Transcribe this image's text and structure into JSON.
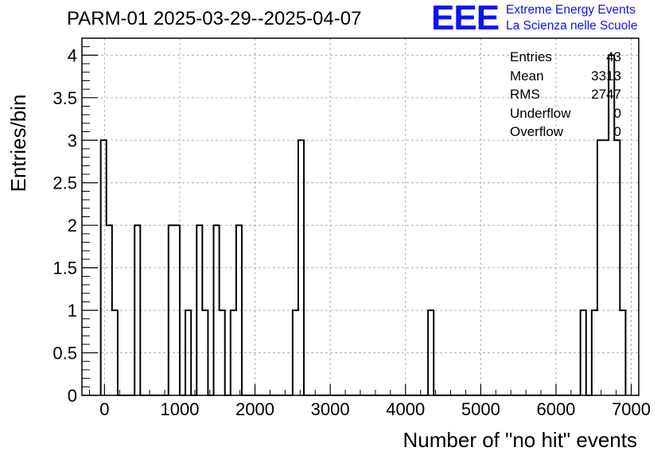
{
  "title": "PARM-01 2025-03-29--2025-04-07",
  "logo": {
    "mark": "EEE",
    "line1": "Extreme Energy Events",
    "line2": "La Scienza nelle Scuole"
  },
  "stats": [
    {
      "label": "Entries",
      "value": "43"
    },
    {
      "label": "Mean",
      "value": "3313"
    },
    {
      "label": "RMS",
      "value": "2747"
    },
    {
      "label": "Underflow",
      "value": "0"
    },
    {
      "label": "Overflow",
      "value": "0"
    }
  ],
  "chart_data": {
    "type": "histogram",
    "xlabel": "Number of \"no hit\" events",
    "ylabel": "Entries/bin",
    "xlim": [
      -300,
      7100
    ],
    "ylim": [
      0,
      4.2
    ],
    "xticks": [
      "0",
      "1000",
      "2000",
      "3000",
      "4000",
      "5000",
      "6000",
      "7000"
    ],
    "xtick_values": [
      0,
      1000,
      2000,
      3000,
      4000,
      5000,
      6000,
      7000
    ],
    "yticks": [
      "0",
      "0.5",
      "1",
      "1.5",
      "2",
      "2.5",
      "3",
      "3.5",
      "4"
    ],
    "ytick_values": [
      0,
      0.5,
      1,
      1.5,
      2,
      2.5,
      3,
      3.5,
      4
    ],
    "bin_width": 75,
    "bins": [
      {
        "x": -50,
        "count": 3
      },
      {
        "x": 25,
        "count": 2
      },
      {
        "x": 100,
        "count": 1
      },
      {
        "x": 400,
        "count": 2
      },
      {
        "x": 850,
        "count": 2
      },
      {
        "x": 925,
        "count": 2
      },
      {
        "x": 1075,
        "count": 1
      },
      {
        "x": 1225,
        "count": 2
      },
      {
        "x": 1300,
        "count": 1
      },
      {
        "x": 1450,
        "count": 2
      },
      {
        "x": 1525,
        "count": 1
      },
      {
        "x": 1675,
        "count": 1
      },
      {
        "x": 1750,
        "count": 2
      },
      {
        "x": 2500,
        "count": 1
      },
      {
        "x": 2575,
        "count": 3
      },
      {
        "x": 4300,
        "count": 1
      },
      {
        "x": 6325,
        "count": 1
      },
      {
        "x": 6475,
        "count": 1
      },
      {
        "x": 6550,
        "count": 3
      },
      {
        "x": 6625,
        "count": 3
      },
      {
        "x": 6700,
        "count": 4
      },
      {
        "x": 6775,
        "count": 3
      },
      {
        "x": 6850,
        "count": 1
      }
    ],
    "grid": true,
    "legend": "top-right"
  }
}
